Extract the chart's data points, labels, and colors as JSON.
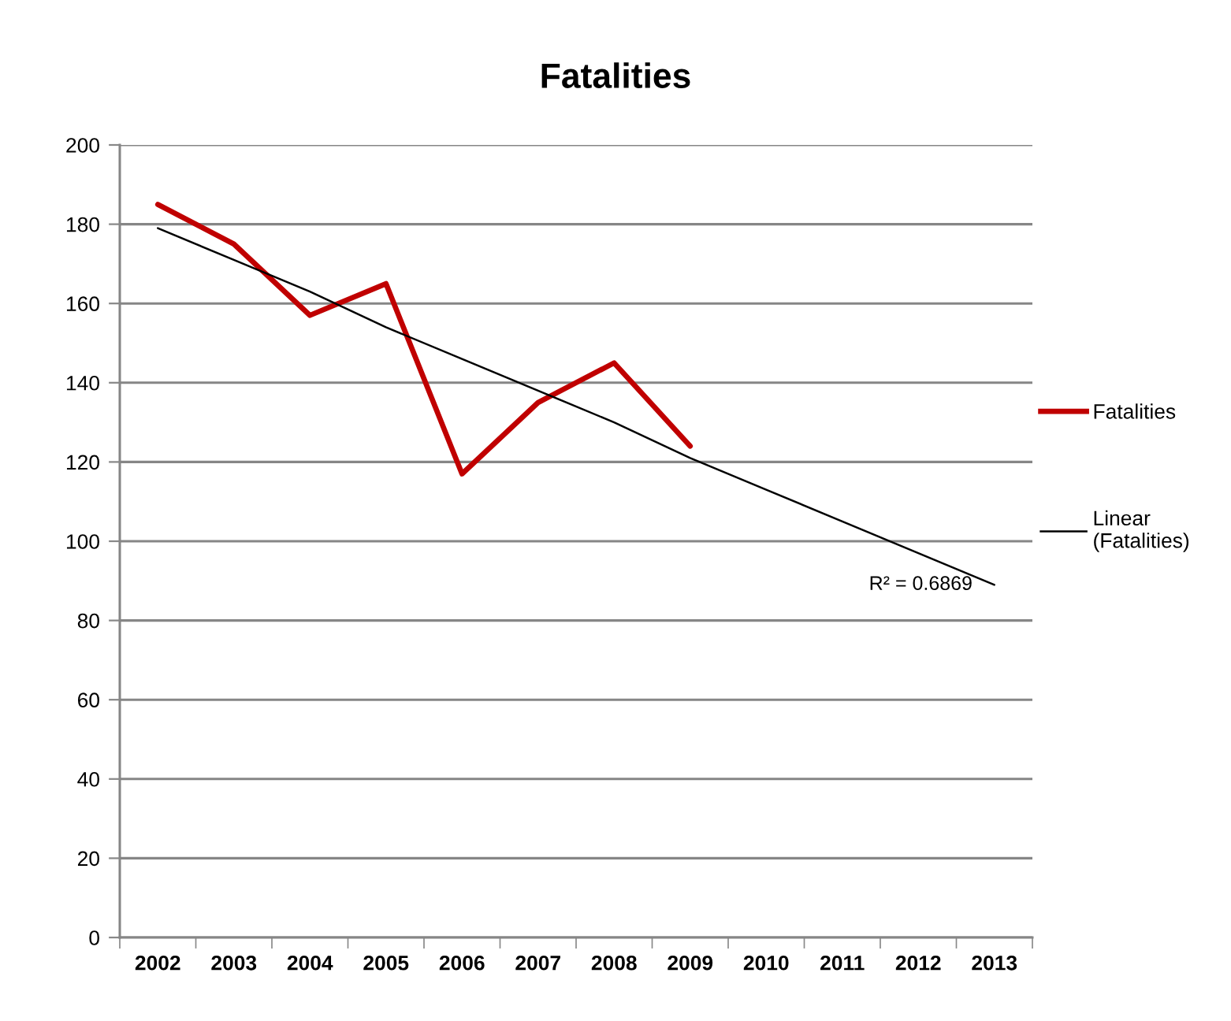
{
  "chart_data": {
    "type": "line",
    "title": "Fatalities",
    "categories": [
      "2002",
      "2003",
      "2004",
      "2005",
      "2006",
      "2007",
      "2008",
      "2009",
      "2010",
      "2011",
      "2012",
      "2013"
    ],
    "series": [
      {
        "name": "Fatalities",
        "color": "#c00000",
        "values": [
          185,
          175,
          157,
          165,
          117,
          135,
          145,
          124,
          null,
          null,
          null,
          null
        ]
      },
      {
        "name": "Linear (Fatalities)",
        "type": "line",
        "color": "#000000",
        "values": [
          179,
          171,
          163,
          154,
          146,
          138,
          130,
          121,
          113,
          105,
          97,
          89
        ]
      }
    ],
    "annotations": [
      {
        "text": "R² = 0.6869",
        "x": "2013",
        "y": 89
      }
    ],
    "ylim": [
      0,
      200
    ],
    "yticks": [
      0,
      20,
      40,
      60,
      80,
      100,
      120,
      140,
      160,
      180,
      200
    ],
    "grid": "y",
    "legend": "right",
    "marker": "none",
    "line_style": "solid"
  }
}
